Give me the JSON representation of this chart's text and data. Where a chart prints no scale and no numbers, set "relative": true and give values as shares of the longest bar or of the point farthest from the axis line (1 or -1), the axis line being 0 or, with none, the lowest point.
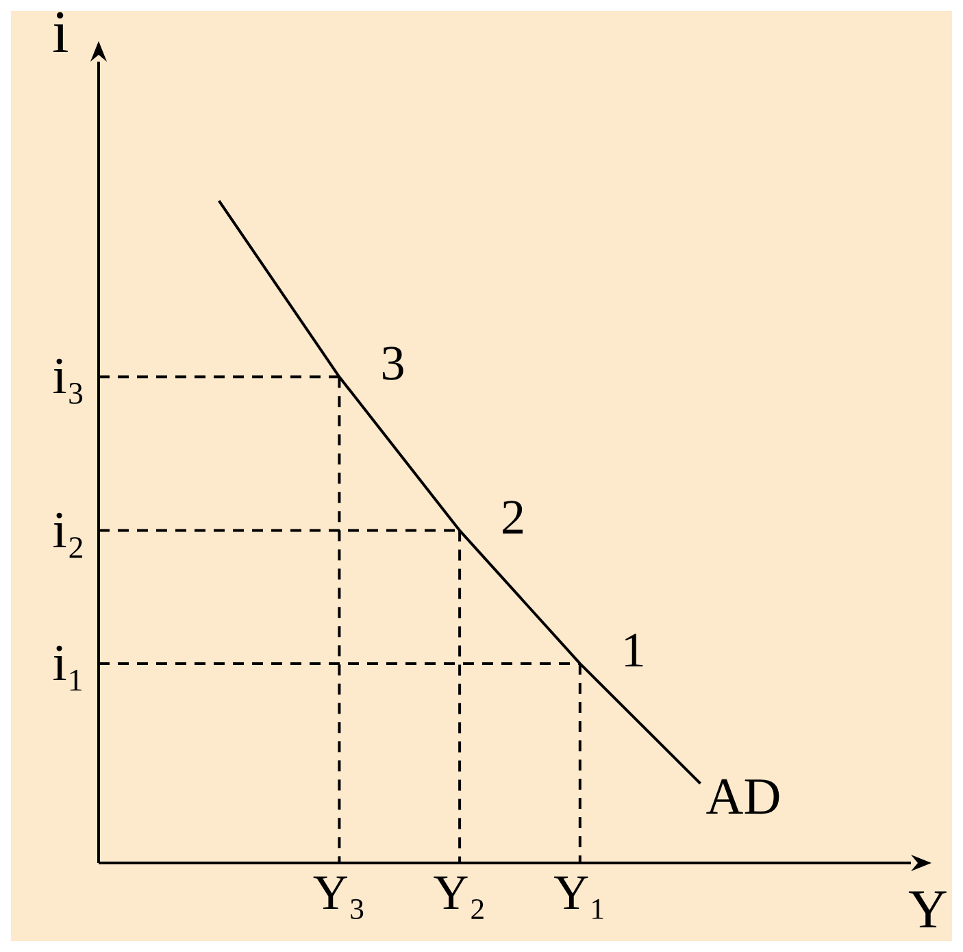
{
  "chart_data": {
    "type": "line",
    "xlabel": "Y",
    "ylabel": "i",
    "relative": true,
    "grid": false,
    "legend": false,
    "marker": "none",
    "categories": [
      null,
      null,
      "Y₃",
      "Y₂",
      "Y₁",
      null
    ],
    "series": [
      {
        "name": "AD",
        "color": "#000000",
        "line_style": "solid",
        "values": [
          null,
          1,
          0.734,
          0.502,
          0.301,
          0.12
        ]
      },
      {
        "name": "i₃",
        "color": "#000000",
        "line_style": "dashed",
        "values": [
          0.734,
          0.734,
          0.734,
          null,
          null,
          null
        ]
      },
      {
        "name": "i₂",
        "color": "#000000",
        "line_style": "dashed",
        "values": [
          0.502,
          0.502,
          0.502,
          0.502,
          null,
          null
        ]
      },
      {
        "name": "i₁",
        "color": "#000000",
        "line_style": "dashed",
        "values": [
          0.301,
          0.301,
          0.301,
          0.301,
          0.301,
          null
        ]
      },
      {
        "color": "#000000",
        "line_style": "dashed",
        "x": [
          "Y₃",
          "Y₃"
        ],
        "values": [
          0.734,
          0
        ]
      },
      {
        "color": "#000000",
        "line_style": "dashed",
        "x": [
          "Y₂",
          "Y₂"
        ],
        "values": [
          0.502,
          0
        ]
      },
      {
        "color": "#000000",
        "line_style": "dashed",
        "x": [
          "Y₁",
          "Y₁"
        ],
        "values": [
          0.301,
          0
        ]
      }
    ],
    "annotations": [
      {
        "text": "3",
        "x": "Y₃",
        "y": 0.734
      },
      {
        "text": "2",
        "x": "Y₂",
        "y": 0.502
      },
      {
        "text": "1",
        "x": "Y₁",
        "y": 0.301
      }
    ]
  }
}
